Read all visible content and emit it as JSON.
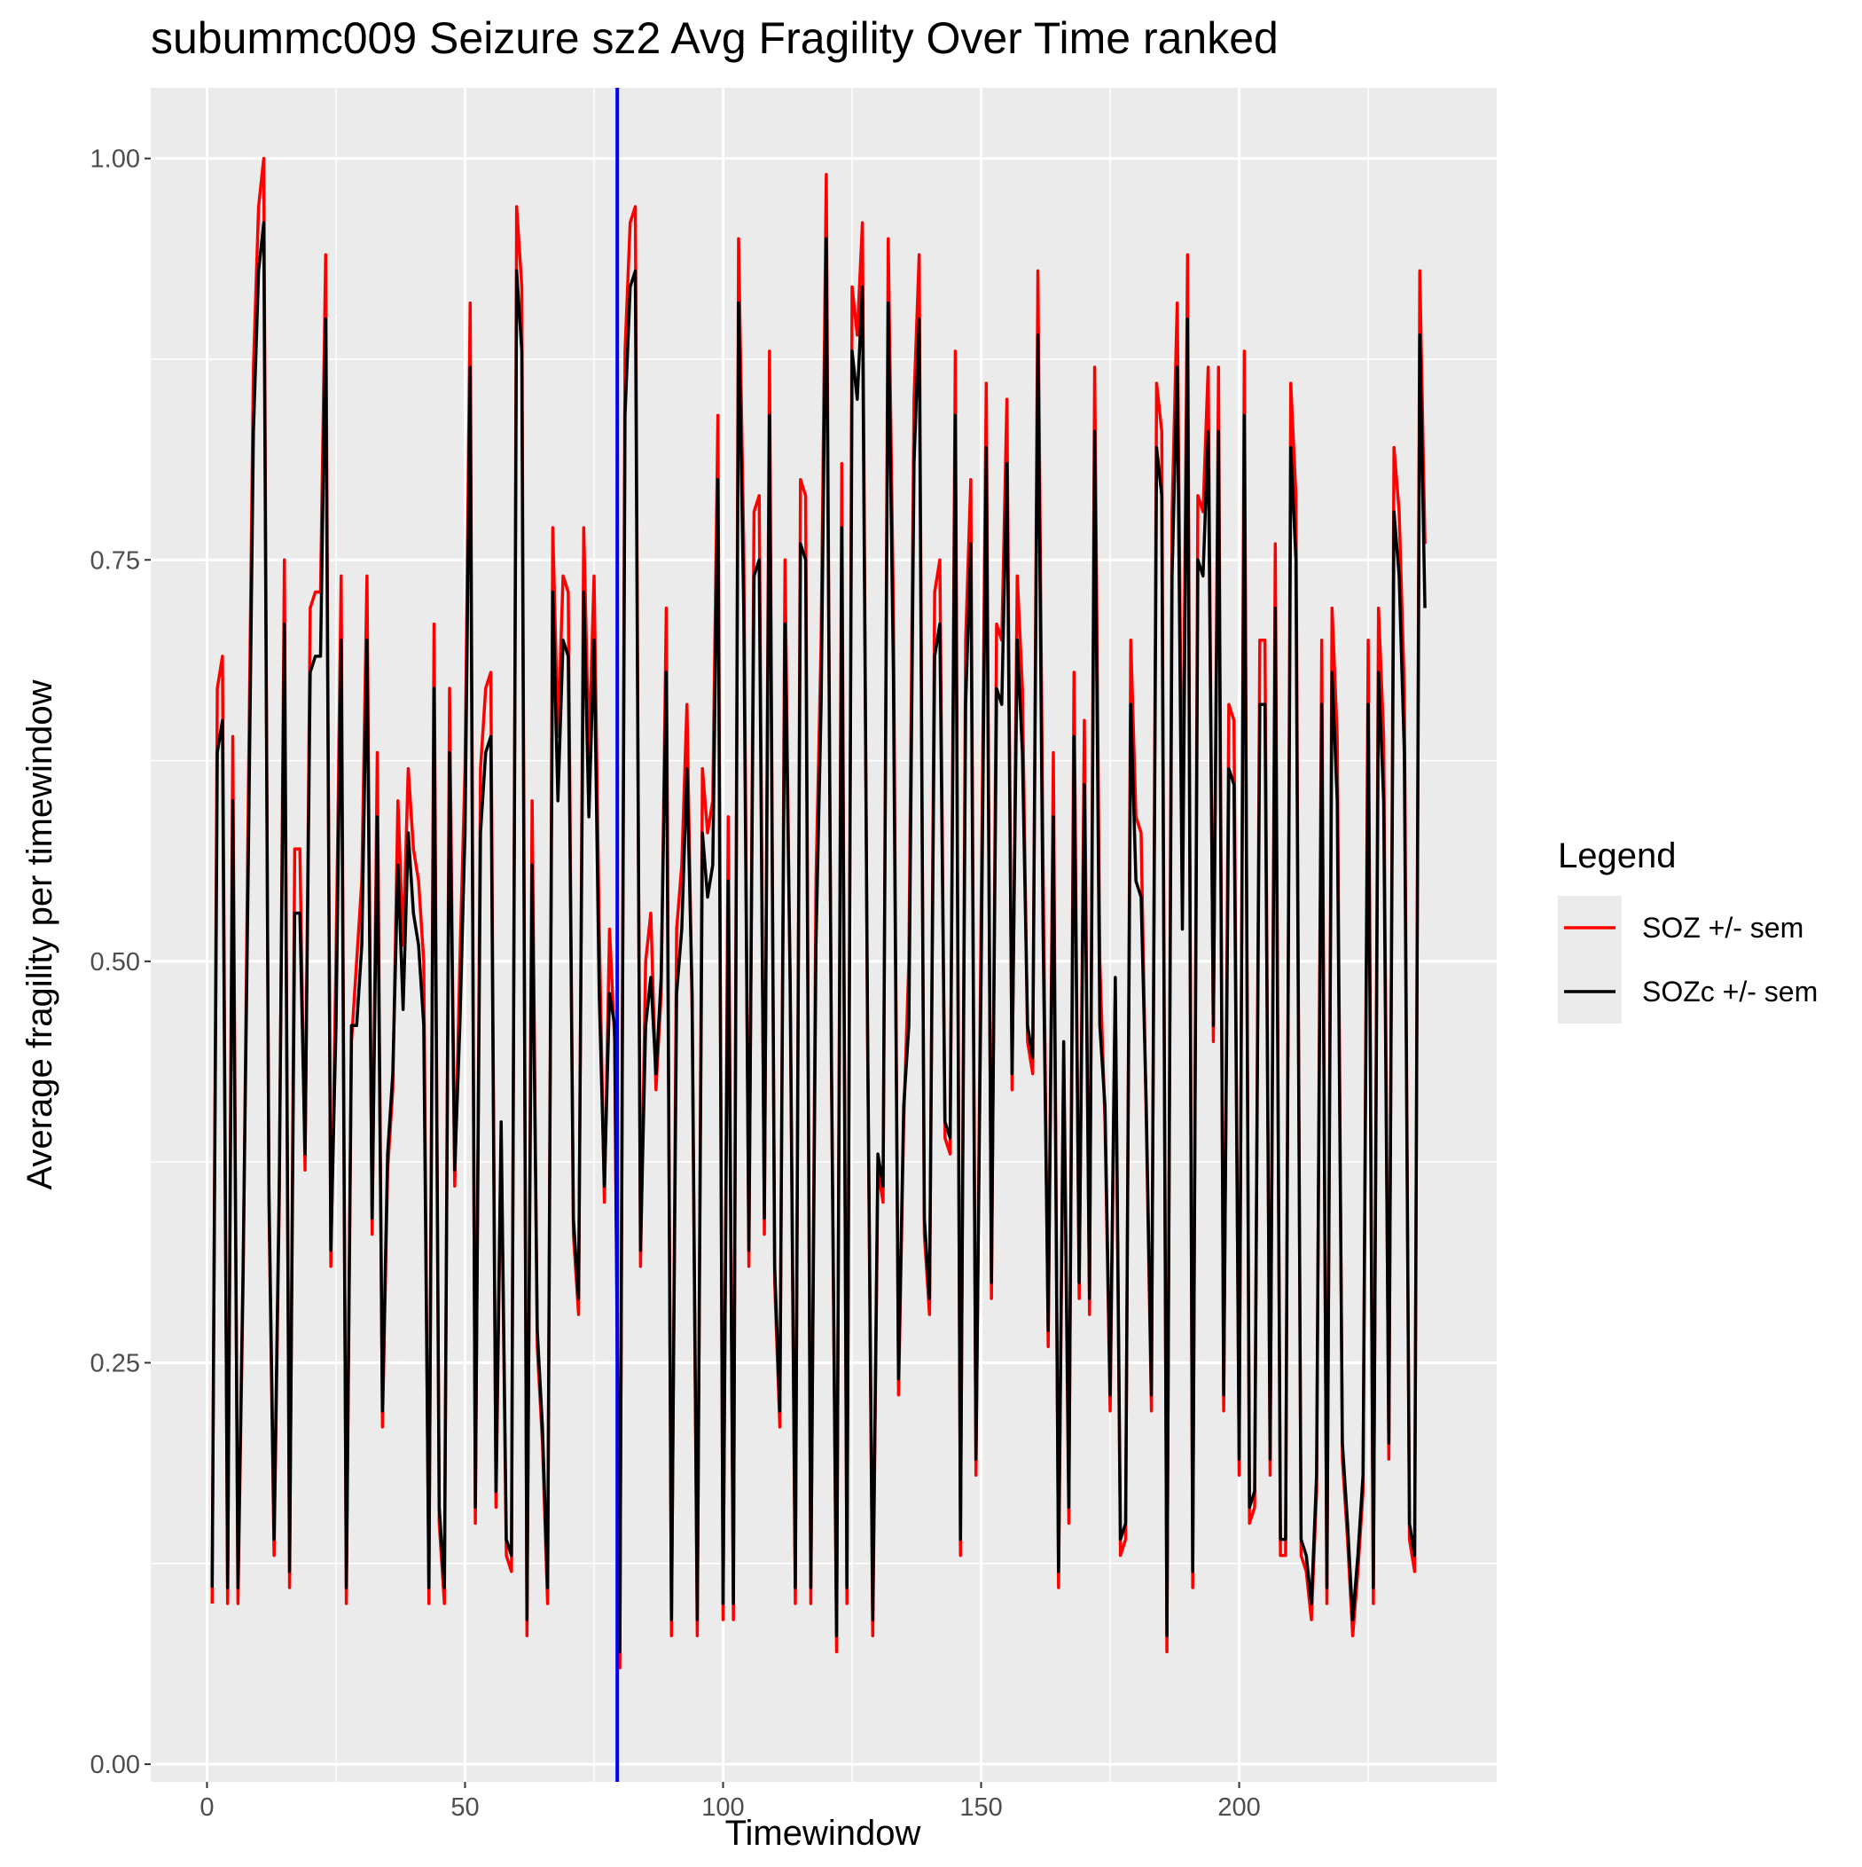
{
  "chart_data": {
    "type": "line",
    "title": "subummc009 Seizure sz2 Avg Fragility Over Time ranked",
    "x_label": "Timewindow",
    "y_label": "Average fragility per timewindow",
    "legend_title": "Legend",
    "legend_position": "right",
    "grid": true,
    "xlim": [
      -10.9,
      249.9
    ],
    "ylim": [
      -0.011,
      1.044
    ],
    "xticks": [
      0,
      50,
      100,
      150,
      200
    ],
    "yticks": [
      {
        "value": 0,
        "label": "0.00"
      },
      {
        "value": 0.25,
        "label": "0.25"
      },
      {
        "value": 0.5,
        "label": "0.50"
      },
      {
        "value": 0.75,
        "label": "0.75"
      },
      {
        "value": 1,
        "label": "1.00"
      }
    ],
    "xminor": [
      25,
      75,
      125,
      175,
      225
    ],
    "yminor": [
      0.125,
      0.375,
      0.625,
      0.875
    ],
    "annotations": [
      {
        "x": 79.5,
        "color": "#0000ff"
      }
    ],
    "x": [
      1,
      2,
      3,
      4,
      5,
      6,
      7,
      8,
      9,
      10,
      11,
      12,
      13,
      14,
      15,
      16,
      17,
      18,
      19,
      20,
      21,
      22,
      23,
      24,
      25,
      26,
      27,
      28,
      29,
      30,
      31,
      32,
      33,
      34,
      35,
      36,
      37,
      38,
      39,
      40,
      41,
      42,
      43,
      44,
      45,
      46,
      47,
      48,
      49,
      50,
      51,
      52,
      53,
      54,
      55,
      56,
      57,
      58,
      59,
      60,
      61,
      62,
      63,
      64,
      65,
      66,
      67,
      68,
      69,
      70,
      71,
      72,
      73,
      74,
      75,
      76,
      77,
      78,
      79,
      80,
      81,
      82,
      83,
      84,
      85,
      86,
      87,
      88,
      89,
      90,
      91,
      92,
      93,
      94,
      95,
      96,
      97,
      98,
      99,
      100,
      101,
      102,
      103,
      104,
      105,
      106,
      107,
      108,
      109,
      110,
      111,
      112,
      113,
      114,
      115,
      116,
      117,
      118,
      119,
      120,
      121,
      122,
      123,
      124,
      125,
      126,
      127,
      128,
      129,
      130,
      131,
      132,
      133,
      134,
      135,
      136,
      137,
      138,
      139,
      140,
      141,
      142,
      143,
      144,
      145,
      146,
      147,
      148,
      149,
      150,
      151,
      152,
      153,
      154,
      155,
      156,
      157,
      158,
      159,
      160,
      161,
      162,
      163,
      164,
      165,
      166,
      167,
      168,
      169,
      170,
      171,
      172,
      173,
      174,
      175,
      176,
      177,
      178,
      179,
      180,
      181,
      182,
      183,
      184,
      185,
      186,
      187,
      188,
      189,
      190,
      191,
      192,
      193,
      194,
      195,
      196,
      197,
      198,
      199,
      200,
      201,
      202,
      203,
      204,
      205,
      206,
      207,
      208,
      209,
      210,
      211,
      212,
      213,
      214,
      215,
      216,
      217,
      218,
      219,
      220,
      221,
      222,
      223,
      224,
      225,
      226,
      227,
      228,
      229,
      230,
      231,
      232,
      233,
      234,
      235,
      236
    ],
    "series": [
      {
        "name": "SOZ +/- sem",
        "color": "#ff0000",
        "values": [
          0.1,
          0.67,
          0.69,
          0.1,
          0.64,
          0.1,
          0.3,
          0.6,
          0.87,
          0.97,
          1.0,
          0.35,
          0.13,
          0.35,
          0.75,
          0.11,
          0.57,
          0.57,
          0.37,
          0.72,
          0.73,
          0.73,
          0.94,
          0.31,
          0.5,
          0.74,
          0.1,
          0.45,
          0.5,
          0.55,
          0.74,
          0.33,
          0.63,
          0.21,
          0.37,
          0.42,
          0.6,
          0.51,
          0.62,
          0.57,
          0.55,
          0.5,
          0.1,
          0.71,
          0.15,
          0.1,
          0.67,
          0.36,
          0.5,
          0.62,
          0.91,
          0.15,
          0.62,
          0.67,
          0.68,
          0.16,
          0.39,
          0.13,
          0.12,
          0.97,
          0.92,
          0.08,
          0.6,
          0.26,
          0.2,
          0.1,
          0.77,
          0.64,
          0.74,
          0.73,
          0.33,
          0.28,
          0.77,
          0.63,
          0.74,
          0.52,
          0.35,
          0.52,
          0.45,
          0.06,
          0.88,
          0.96,
          0.97,
          0.31,
          0.5,
          0.53,
          0.42,
          0.48,
          0.72,
          0.08,
          0.52,
          0.56,
          0.66,
          0.47,
          0.08,
          0.62,
          0.58,
          0.6,
          0.84,
          0.09,
          0.59,
          0.09,
          0.95,
          0.76,
          0.31,
          0.78,
          0.79,
          0.33,
          0.88,
          0.3,
          0.21,
          0.75,
          0.48,
          0.1,
          0.8,
          0.79,
          0.1,
          0.55,
          0.7,
          0.99,
          0.43,
          0.07,
          0.81,
          0.1,
          0.92,
          0.89,
          0.96,
          0.45,
          0.08,
          0.37,
          0.35,
          0.95,
          0.72,
          0.23,
          0.4,
          0.5,
          0.85,
          0.94,
          0.33,
          0.28,
          0.73,
          0.75,
          0.39,
          0.38,
          0.88,
          0.13,
          0.7,
          0.8,
          0.18,
          0.53,
          0.86,
          0.29,
          0.71,
          0.7,
          0.85,
          0.42,
          0.74,
          0.67,
          0.45,
          0.43,
          0.93,
          0.56,
          0.26,
          0.63,
          0.11,
          0.44,
          0.15,
          0.68,
          0.29,
          0.65,
          0.28,
          0.87,
          0.5,
          0.4,
          0.22,
          0.48,
          0.13,
          0.14,
          0.7,
          0.59,
          0.58,
          0.4,
          0.22,
          0.86,
          0.83,
          0.07,
          0.78,
          0.91,
          0.56,
          0.94,
          0.11,
          0.79,
          0.78,
          0.87,
          0.45,
          0.87,
          0.22,
          0.66,
          0.65,
          0.18,
          0.88,
          0.15,
          0.16,
          0.7,
          0.7,
          0.18,
          0.76,
          0.13,
          0.13,
          0.86,
          0.79,
          0.13,
          0.12,
          0.09,
          0.17,
          0.7,
          0.1,
          0.72,
          0.64,
          0.19,
          0.14,
          0.08,
          0.12,
          0.17,
          0.7,
          0.1,
          0.72,
          0.64,
          0.19,
          0.82,
          0.78,
          0.67,
          0.14,
          0.12,
          0.93,
          0.76
        ]
      },
      {
        "name": "SOZc +/- sem",
        "color": "#000000",
        "values": [
          0.11,
          0.63,
          0.65,
          0.11,
          0.6,
          0.11,
          0.31,
          0.56,
          0.83,
          0.93,
          0.96,
          0.36,
          0.14,
          0.36,
          0.71,
          0.12,
          0.53,
          0.53,
          0.38,
          0.68,
          0.69,
          0.69,
          0.9,
          0.32,
          0.46,
          0.7,
          0.11,
          0.46,
          0.46,
          0.51,
          0.7,
          0.34,
          0.59,
          0.22,
          0.38,
          0.43,
          0.56,
          0.47,
          0.58,
          0.53,
          0.51,
          0.46,
          0.11,
          0.67,
          0.16,
          0.11,
          0.63,
          0.37,
          0.46,
          0.58,
          0.87,
          0.16,
          0.58,
          0.63,
          0.64,
          0.17,
          0.4,
          0.14,
          0.13,
          0.93,
          0.88,
          0.09,
          0.56,
          0.27,
          0.21,
          0.11,
          0.73,
          0.6,
          0.7,
          0.69,
          0.34,
          0.29,
          0.73,
          0.59,
          0.7,
          0.48,
          0.36,
          0.48,
          0.46,
          0.07,
          0.84,
          0.92,
          0.93,
          0.32,
          0.46,
          0.49,
          0.43,
          0.49,
          0.68,
          0.09,
          0.48,
          0.52,
          0.62,
          0.48,
          0.09,
          0.58,
          0.54,
          0.56,
          0.8,
          0.1,
          0.55,
          0.1,
          0.91,
          0.72,
          0.32,
          0.74,
          0.75,
          0.34,
          0.84,
          0.31,
          0.22,
          0.71,
          0.49,
          0.11,
          0.76,
          0.75,
          0.11,
          0.51,
          0.66,
          0.95,
          0.44,
          0.08,
          0.77,
          0.11,
          0.88,
          0.85,
          0.92,
          0.46,
          0.09,
          0.38,
          0.36,
          0.91,
          0.68,
          0.24,
          0.41,
          0.46,
          0.81,
          0.9,
          0.34,
          0.29,
          0.69,
          0.71,
          0.4,
          0.39,
          0.84,
          0.14,
          0.66,
          0.76,
          0.19,
          0.49,
          0.82,
          0.3,
          0.67,
          0.66,
          0.81,
          0.43,
          0.7,
          0.63,
          0.46,
          0.44,
          0.89,
          0.52,
          0.27,
          0.59,
          0.12,
          0.45,
          0.16,
          0.64,
          0.3,
          0.61,
          0.29,
          0.83,
          0.46,
          0.41,
          0.23,
          0.49,
          0.14,
          0.15,
          0.66,
          0.55,
          0.54,
          0.41,
          0.23,
          0.82,
          0.79,
          0.08,
          0.74,
          0.87,
          0.52,
          0.9,
          0.12,
          0.75,
          0.74,
          0.83,
          0.46,
          0.83,
          0.23,
          0.62,
          0.61,
          0.19,
          0.84,
          0.16,
          0.17,
          0.66,
          0.66,
          0.19,
          0.72,
          0.14,
          0.14,
          0.82,
          0.75,
          0.14,
          0.13,
          0.1,
          0.18,
          0.66,
          0.11,
          0.68,
          0.6,
          0.2,
          0.15,
          0.09,
          0.13,
          0.18,
          0.66,
          0.11,
          0.68,
          0.6,
          0.2,
          0.78,
          0.74,
          0.63,
          0.15,
          0.13,
          0.89,
          0.72
        ]
      }
    ]
  }
}
